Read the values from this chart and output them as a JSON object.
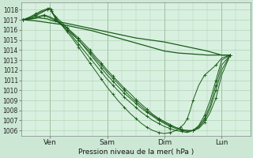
{
  "bg_color": "#cce8d4",
  "plot_bg": "#d8f0e0",
  "grid_color": "#aaccaa",
  "line_color": "#1a5c1a",
  "ylabel": "Pression niveau de la mer( hPa )",
  "ylim": [
    1005.5,
    1018.7
  ],
  "yticks": [
    1006,
    1007,
    1008,
    1009,
    1010,
    1011,
    1012,
    1013,
    1014,
    1015,
    1016,
    1017,
    1018
  ],
  "xtick_labels": [
    "Ven",
    "Sam",
    "Dim",
    "Lun"
  ],
  "xtick_positions": [
    1,
    3,
    5,
    7
  ],
  "xlim": [
    0,
    8
  ],
  "lines": [
    {
      "x": [
        0.05,
        0.3,
        0.6,
        0.9,
        1.1,
        1.5,
        2.0,
        2.5,
        3.0,
        3.5,
        4.0,
        4.5,
        5.0,
        5.5,
        6.0,
        6.5,
        7.0,
        7.3
      ],
      "y": [
        1017.0,
        1017.1,
        1017.2,
        1017.1,
        1016.9,
        1016.7,
        1016.4,
        1016.1,
        1015.8,
        1015.5,
        1015.2,
        1015.0,
        1014.8,
        1014.5,
        1014.2,
        1013.9,
        1013.5,
        1013.5
      ],
      "marker": false,
      "lw": 0.9
    },
    {
      "x": [
        0.05,
        0.5,
        1.0,
        1.5,
        2.0,
        2.5,
        3.0,
        3.5,
        4.0,
        4.5,
        5.0,
        5.5,
        6.0,
        6.5,
        7.0,
        7.3
      ],
      "y": [
        1017.0,
        1016.9,
        1016.7,
        1016.5,
        1016.2,
        1015.9,
        1015.5,
        1015.1,
        1014.7,
        1014.3,
        1013.9,
        1013.7,
        1013.6,
        1013.5,
        1013.5,
        1013.5
      ],
      "marker": false,
      "lw": 0.9
    },
    {
      "x": [
        0.05,
        0.4,
        0.8,
        1.0,
        1.2,
        1.4,
        1.6,
        1.8,
        2.0,
        2.2,
        2.4,
        2.6,
        2.8,
        3.0,
        3.2,
        3.4,
        3.6,
        3.8,
        4.0,
        4.2,
        4.4,
        4.6,
        4.8,
        5.0,
        5.2,
        5.4,
        5.6,
        5.8,
        6.0,
        6.2,
        6.4,
        6.6,
        6.8,
        7.0,
        7.3
      ],
      "y": [
        1017.0,
        1017.2,
        1017.5,
        1017.3,
        1017.0,
        1016.6,
        1016.2,
        1015.7,
        1015.2,
        1014.6,
        1014.0,
        1013.3,
        1012.7,
        1012.0,
        1011.4,
        1010.8,
        1010.2,
        1009.7,
        1009.1,
        1008.6,
        1008.1,
        1007.6,
        1007.2,
        1006.9,
        1006.6,
        1006.3,
        1006.1,
        1006.0,
        1006.0,
        1006.3,
        1007.0,
        1008.2,
        1010.0,
        1012.0,
        1013.5
      ],
      "marker": true,
      "lw": 0.7
    },
    {
      "x": [
        0.05,
        0.4,
        0.8,
        1.0,
        1.2,
        1.4,
        1.6,
        1.8,
        2.0,
        2.2,
        2.4,
        2.6,
        2.8,
        3.0,
        3.2,
        3.4,
        3.6,
        3.8,
        4.0,
        4.2,
        4.4,
        4.6,
        4.8,
        5.0,
        5.2,
        5.4,
        5.6,
        5.8,
        6.0,
        6.2,
        6.4,
        6.6,
        6.8,
        7.0,
        7.3
      ],
      "y": [
        1017.0,
        1017.1,
        1017.4,
        1017.2,
        1016.9,
        1016.5,
        1016.0,
        1015.5,
        1015.0,
        1014.4,
        1013.8,
        1013.1,
        1012.5,
        1011.8,
        1011.2,
        1010.6,
        1010.0,
        1009.4,
        1008.9,
        1008.4,
        1007.9,
        1007.5,
        1007.1,
        1006.8,
        1006.5,
        1006.3,
        1006.1,
        1006.0,
        1006.0,
        1006.2,
        1006.8,
        1007.8,
        1009.2,
        1011.5,
        1013.5
      ],
      "marker": true,
      "lw": 0.7
    },
    {
      "x": [
        0.05,
        0.3,
        0.5,
        0.7,
        0.9,
        1.0,
        1.05,
        1.1,
        1.2,
        1.4,
        1.6,
        1.8,
        2.0,
        2.2,
        2.4,
        2.6,
        2.8,
        3.0,
        3.2,
        3.4,
        3.6,
        3.8,
        4.0,
        4.2,
        4.4,
        4.6,
        4.8,
        5.0,
        5.2,
        5.4,
        5.6,
        5.8,
        6.0,
        6.2,
        6.4,
        6.6,
        6.8,
        7.0,
        7.3
      ],
      "y": [
        1017.0,
        1017.3,
        1017.6,
        1017.9,
        1018.1,
        1018.2,
        1018.0,
        1017.7,
        1017.3,
        1016.8,
        1016.2,
        1015.6,
        1015.0,
        1014.3,
        1013.6,
        1012.9,
        1012.2,
        1011.5,
        1010.9,
        1010.3,
        1009.7,
        1009.2,
        1008.7,
        1008.2,
        1007.8,
        1007.4,
        1007.0,
        1006.7,
        1006.4,
        1006.2,
        1006.0,
        1005.9,
        1006.0,
        1006.4,
        1007.2,
        1008.5,
        1010.5,
        1012.5,
        1013.5
      ],
      "marker": true,
      "lw": 0.7
    },
    {
      "x": [
        0.05,
        0.3,
        0.5,
        0.7,
        0.9,
        1.0,
        1.05,
        1.1,
        1.2,
        1.4,
        1.6,
        1.8,
        2.0,
        2.2,
        2.4,
        2.6,
        2.8,
        3.0,
        3.2,
        3.4,
        3.6,
        3.8,
        4.0,
        4.2,
        4.4,
        4.6,
        4.8,
        5.0,
        5.2,
        5.4,
        5.6,
        5.8,
        6.0,
        6.2,
        6.4,
        6.6,
        6.8,
        7.0,
        7.3
      ],
      "y": [
        1017.0,
        1017.2,
        1017.5,
        1017.8,
        1018.0,
        1018.1,
        1017.9,
        1017.6,
        1017.2,
        1016.6,
        1016.0,
        1015.3,
        1014.6,
        1013.9,
        1013.2,
        1012.5,
        1011.8,
        1011.1,
        1010.5,
        1009.9,
        1009.3,
        1008.8,
        1008.3,
        1007.8,
        1007.4,
        1007.0,
        1006.7,
        1006.4,
        1006.2,
        1006.0,
        1005.9,
        1005.8,
        1006.0,
        1006.5,
        1007.5,
        1009.0,
        1011.0,
        1013.0,
        1013.5
      ],
      "marker": true,
      "lw": 0.7
    },
    {
      "x": [
        0.05,
        0.3,
        0.5,
        0.7,
        0.9,
        1.0,
        1.05,
        1.1,
        1.2,
        1.4,
        1.6,
        1.8,
        2.0,
        2.2,
        2.4,
        2.6,
        2.8,
        3.0,
        3.2,
        3.4,
        3.6,
        3.8,
        4.0,
        4.2,
        4.4,
        4.6,
        4.8,
        5.0,
        5.2,
        5.4,
        5.56,
        5.7,
        5.8,
        5.9,
        6.0,
        6.2,
        6.4,
        6.6,
        6.8,
        7.0,
        7.3
      ],
      "y": [
        1017.0,
        1017.2,
        1017.4,
        1017.7,
        1018.0,
        1018.1,
        1017.9,
        1017.6,
        1017.1,
        1016.5,
        1015.8,
        1015.1,
        1014.3,
        1013.5,
        1012.7,
        1011.9,
        1011.1,
        1010.3,
        1009.6,
        1008.9,
        1008.3,
        1007.7,
        1007.2,
        1006.7,
        1006.3,
        1006.0,
        1005.8,
        1005.7,
        1005.8,
        1006.0,
        1006.3,
        1006.7,
        1007.2,
        1008.0,
        1009.0,
        1010.5,
        1011.5,
        1012.0,
        1012.5,
        1013.2,
        1013.5
      ],
      "marker": true,
      "lw": 0.7
    }
  ]
}
